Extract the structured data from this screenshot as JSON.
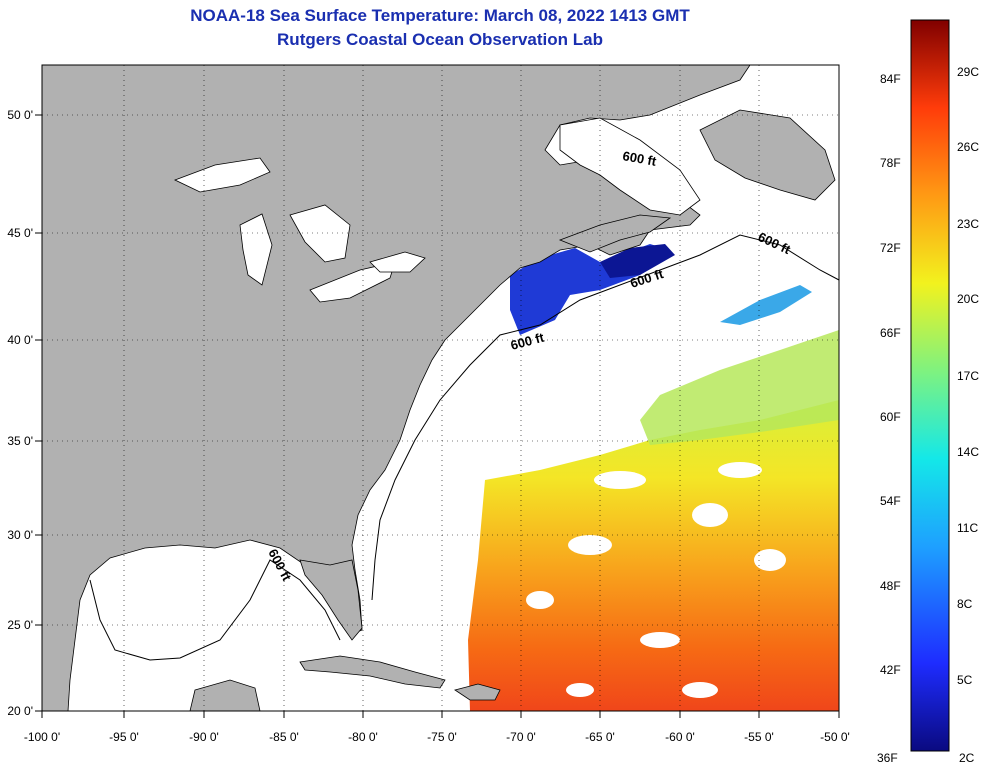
{
  "title": "NOAA-18 Sea Surface Temperature:  March 08, 2022 1413 GMT",
  "subtitle": "Rutgers Coastal Ocean Observation Lab",
  "axes": {
    "lon_labels": [
      "-100 0'",
      "-95 0'",
      "-90 0'",
      "-85 0'",
      "-80 0'",
      "-75 0'",
      "-70 0'",
      "-65 0'",
      "-60 0'",
      "-55 0'",
      "-50 0'"
    ],
    "lat_labels": [
      "50 0'",
      "45 0'",
      "40 0'",
      "35 0'",
      "30 0'",
      "25 0'",
      "20 0'"
    ]
  },
  "contour_label": "600 ft",
  "colorbar": {
    "fahrenheit": [
      "84F",
      "78F",
      "72F",
      "66F",
      "60F",
      "54F",
      "48F",
      "42F",
      "36F"
    ],
    "celsius": [
      "29C",
      "26C",
      "23C",
      "20C",
      "17C",
      "14C",
      "11C",
      "8C",
      "5C",
      "2C"
    ]
  },
  "colors": {
    "land": "#b1b1b1",
    "ocean": "#ffffff",
    "title": "#1a2fb0",
    "scale_cold": "#0a0a80",
    "scale_hot": "#800000"
  }
}
